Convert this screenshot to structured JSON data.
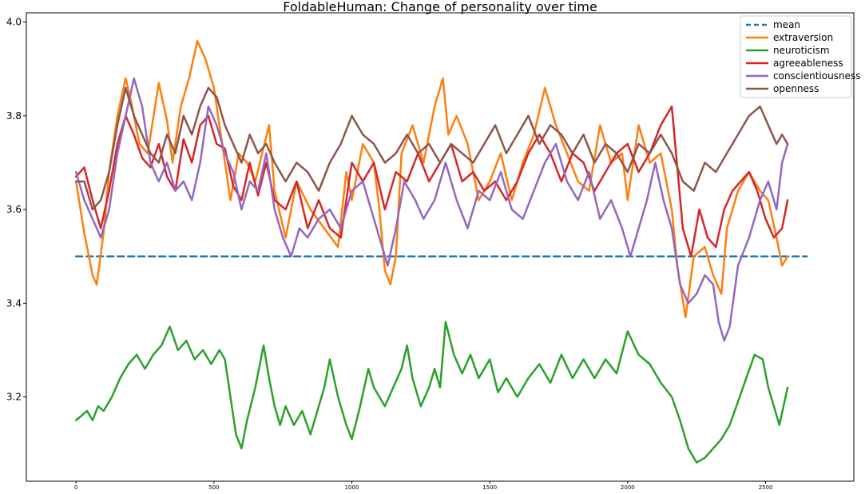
{
  "chart_data": {
    "type": "line",
    "title": "FoldableHuman: Change of personality over time",
    "xlabel": "",
    "ylabel": "",
    "xlim": [
      -180,
      2820
    ],
    "ylim": [
      3.02,
      4.02
    ],
    "xticks": [
      0,
      500,
      1000,
      1500,
      2000,
      2500
    ],
    "xtick_labels": [
      "0",
      "500",
      "1000",
      "1500",
      "2000",
      "2500"
    ],
    "yticks": [
      3.2,
      3.4,
      3.6,
      3.8,
      4.0
    ],
    "ytick_labels": [
      "3.2",
      "3.4",
      "3.6",
      "3.8",
      "4.0"
    ],
    "grid": false,
    "legend_position": "top-right",
    "series": [
      {
        "name": "mean",
        "color": "#1f77b4",
        "style": "dashed",
        "x": [
          0,
          2650
        ],
        "values": [
          3.5,
          3.5
        ]
      },
      {
        "name": "extraversion",
        "color": "#ff7f0e",
        "style": "solid",
        "x": [
          0,
          30,
          60,
          75,
          100,
          120,
          150,
          180,
          200,
          230,
          260,
          300,
          330,
          350,
          380,
          410,
          440,
          470,
          500,
          530,
          560,
          590,
          620,
          650,
          700,
          720,
          760,
          800,
          850,
          900,
          950,
          980,
          1000,
          1040,
          1080,
          1100,
          1120,
          1140,
          1160,
          1180,
          1220,
          1260,
          1300,
          1330,
          1350,
          1380,
          1420,
          1460,
          1500,
          1540,
          1580,
          1620,
          1660,
          1700,
          1740,
          1780,
          1820,
          1860,
          1900,
          1940,
          1980,
          2000,
          2040,
          2080,
          2120,
          2160,
          2180,
          2210,
          2240,
          2280,
          2310,
          2340,
          2360,
          2400,
          2440,
          2480,
          2510,
          2540,
          2560,
          2580
        ],
        "values": [
          3.66,
          3.55,
          3.46,
          3.44,
          3.55,
          3.68,
          3.8,
          3.88,
          3.83,
          3.74,
          3.72,
          3.87,
          3.79,
          3.7,
          3.82,
          3.88,
          3.96,
          3.92,
          3.86,
          3.74,
          3.62,
          3.72,
          3.7,
          3.66,
          3.78,
          3.64,
          3.54,
          3.66,
          3.6,
          3.56,
          3.52,
          3.68,
          3.62,
          3.74,
          3.7,
          3.6,
          3.47,
          3.44,
          3.5,
          3.72,
          3.78,
          3.7,
          3.82,
          3.88,
          3.76,
          3.8,
          3.74,
          3.62,
          3.66,
          3.72,
          3.62,
          3.7,
          3.76,
          3.86,
          3.78,
          3.72,
          3.66,
          3.64,
          3.78,
          3.7,
          3.72,
          3.62,
          3.78,
          3.7,
          3.72,
          3.6,
          3.48,
          3.37,
          3.5,
          3.52,
          3.46,
          3.42,
          3.56,
          3.64,
          3.68,
          3.64,
          3.62,
          3.54,
          3.48,
          3.5
        ]
      },
      {
        "name": "neuroticism",
        "color": "#2ca02c",
        "style": "solid",
        "x": [
          0,
          20,
          40,
          60,
          80,
          100,
          130,
          160,
          190,
          220,
          250,
          280,
          310,
          340,
          370,
          400,
          430,
          460,
          490,
          520,
          540,
          560,
          580,
          600,
          620,
          650,
          680,
          700,
          720,
          740,
          760,
          790,
          820,
          850,
          880,
          900,
          920,
          950,
          980,
          1000,
          1030,
          1060,
          1080,
          1100,
          1120,
          1150,
          1180,
          1200,
          1220,
          1250,
          1280,
          1300,
          1320,
          1340,
          1370,
          1400,
          1430,
          1460,
          1500,
          1530,
          1560,
          1600,
          1640,
          1680,
          1720,
          1760,
          1800,
          1840,
          1880,
          1920,
          1960,
          2000,
          2040,
          2080,
          2120,
          2160,
          2190,
          2220,
          2250,
          2280,
          2310,
          2340,
          2370,
          2400,
          2430,
          2460,
          2490,
          2510,
          2530,
          2550,
          2580
        ],
        "values": [
          3.15,
          3.16,
          3.17,
          3.15,
          3.18,
          3.17,
          3.2,
          3.24,
          3.27,
          3.29,
          3.26,
          3.29,
          3.31,
          3.35,
          3.3,
          3.32,
          3.28,
          3.3,
          3.27,
          3.3,
          3.28,
          3.2,
          3.12,
          3.09,
          3.15,
          3.22,
          3.31,
          3.24,
          3.18,
          3.14,
          3.18,
          3.14,
          3.17,
          3.12,
          3.18,
          3.22,
          3.28,
          3.2,
          3.14,
          3.11,
          3.18,
          3.26,
          3.22,
          3.2,
          3.18,
          3.22,
          3.26,
          3.31,
          3.24,
          3.18,
          3.22,
          3.26,
          3.22,
          3.36,
          3.29,
          3.25,
          3.29,
          3.24,
          3.28,
          3.21,
          3.24,
          3.2,
          3.24,
          3.27,
          3.23,
          3.29,
          3.24,
          3.28,
          3.24,
          3.28,
          3.25,
          3.34,
          3.29,
          3.27,
          3.23,
          3.2,
          3.15,
          3.09,
          3.06,
          3.07,
          3.09,
          3.11,
          3.14,
          3.19,
          3.24,
          3.29,
          3.28,
          3.22,
          3.18,
          3.14,
          3.22
        ]
      },
      {
        "name": "agreeableness",
        "color": "#d62728",
        "style": "solid",
        "x": [
          0,
          30,
          60,
          90,
          120,
          150,
          180,
          210,
          240,
          270,
          300,
          330,
          360,
          390,
          420,
          450,
          480,
          510,
          540,
          570,
          600,
          630,
          660,
          690,
          720,
          760,
          800,
          840,
          880,
          920,
          960,
          1000,
          1040,
          1080,
          1120,
          1160,
          1200,
          1240,
          1280,
          1320,
          1360,
          1400,
          1440,
          1480,
          1520,
          1560,
          1600,
          1640,
          1680,
          1720,
          1760,
          1800,
          1840,
          1880,
          1920,
          1960,
          2000,
          2040,
          2080,
          2120,
          2160,
          2200,
          2230,
          2260,
          2290,
          2320,
          2350,
          2380,
          2410,
          2440,
          2470,
          2500,
          2530,
          2560,
          2580
        ],
        "values": [
          3.67,
          3.69,
          3.62,
          3.56,
          3.64,
          3.74,
          3.8,
          3.76,
          3.71,
          3.69,
          3.74,
          3.67,
          3.64,
          3.75,
          3.7,
          3.78,
          3.8,
          3.74,
          3.73,
          3.65,
          3.62,
          3.7,
          3.63,
          3.7,
          3.62,
          3.6,
          3.66,
          3.56,
          3.62,
          3.56,
          3.54,
          3.7,
          3.66,
          3.7,
          3.6,
          3.68,
          3.66,
          3.72,
          3.66,
          3.7,
          3.74,
          3.66,
          3.68,
          3.64,
          3.66,
          3.62,
          3.66,
          3.72,
          3.76,
          3.72,
          3.66,
          3.72,
          3.7,
          3.64,
          3.68,
          3.72,
          3.74,
          3.68,
          3.72,
          3.78,
          3.82,
          3.56,
          3.5,
          3.6,
          3.54,
          3.52,
          3.6,
          3.64,
          3.66,
          3.68,
          3.64,
          3.58,
          3.54,
          3.56,
          3.62
        ]
      },
      {
        "name": "conscientiousness",
        "color": "#9467bd",
        "style": "solid",
        "x": [
          0,
          30,
          60,
          90,
          120,
          150,
          180,
          210,
          240,
          270,
          300,
          330,
          360,
          390,
          420,
          450,
          480,
          510,
          540,
          570,
          600,
          630,
          660,
          690,
          720,
          750,
          780,
          810,
          840,
          880,
          920,
          960,
          1000,
          1040,
          1080,
          1110,
          1130,
          1160,
          1190,
          1230,
          1260,
          1300,
          1340,
          1380,
          1420,
          1460,
          1500,
          1540,
          1580,
          1620,
          1660,
          1700,
          1740,
          1780,
          1820,
          1860,
          1900,
          1940,
          1980,
          2010,
          2040,
          2070,
          2100,
          2130,
          2160,
          2190,
          2220,
          2250,
          2280,
          2310,
          2330,
          2350,
          2370,
          2400,
          2440,
          2480,
          2510,
          2540,
          2560,
          2580
        ],
        "values": [
          3.68,
          3.62,
          3.58,
          3.54,
          3.6,
          3.72,
          3.8,
          3.88,
          3.82,
          3.7,
          3.66,
          3.7,
          3.64,
          3.66,
          3.62,
          3.7,
          3.82,
          3.78,
          3.72,
          3.68,
          3.6,
          3.66,
          3.64,
          3.72,
          3.6,
          3.54,
          3.5,
          3.56,
          3.54,
          3.58,
          3.6,
          3.56,
          3.64,
          3.66,
          3.58,
          3.52,
          3.48,
          3.56,
          3.66,
          3.62,
          3.58,
          3.62,
          3.7,
          3.62,
          3.56,
          3.64,
          3.62,
          3.68,
          3.6,
          3.58,
          3.64,
          3.7,
          3.74,
          3.66,
          3.62,
          3.68,
          3.58,
          3.62,
          3.56,
          3.5,
          3.56,
          3.62,
          3.7,
          3.62,
          3.56,
          3.44,
          3.4,
          3.42,
          3.46,
          3.44,
          3.36,
          3.32,
          3.35,
          3.48,
          3.54,
          3.62,
          3.66,
          3.6,
          3.7,
          3.74
        ]
      },
      {
        "name": "openness",
        "color": "#8c564b",
        "style": "solid",
        "x": [
          0,
          30,
          60,
          90,
          120,
          150,
          180,
          210,
          240,
          270,
          300,
          330,
          360,
          390,
          420,
          450,
          480,
          510,
          540,
          570,
          600,
          630,
          660,
          690,
          720,
          760,
          800,
          840,
          880,
          920,
          960,
          1000,
          1040,
          1080,
          1120,
          1160,
          1200,
          1240,
          1280,
          1320,
          1360,
          1400,
          1440,
          1480,
          1520,
          1560,
          1600,
          1640,
          1680,
          1720,
          1760,
          1800,
          1840,
          1880,
          1920,
          1960,
          2000,
          2040,
          2080,
          2120,
          2160,
          2200,
          2240,
          2280,
          2320,
          2360,
          2400,
          2440,
          2480,
          2510,
          2540,
          2560,
          2580
        ],
        "values": [
          3.66,
          3.66,
          3.6,
          3.62,
          3.68,
          3.78,
          3.86,
          3.8,
          3.76,
          3.72,
          3.7,
          3.76,
          3.72,
          3.8,
          3.76,
          3.82,
          3.86,
          3.84,
          3.78,
          3.74,
          3.7,
          3.76,
          3.72,
          3.74,
          3.7,
          3.66,
          3.7,
          3.68,
          3.64,
          3.7,
          3.74,
          3.8,
          3.76,
          3.74,
          3.7,
          3.72,
          3.76,
          3.72,
          3.74,
          3.7,
          3.74,
          3.72,
          3.7,
          3.74,
          3.78,
          3.72,
          3.76,
          3.8,
          3.74,
          3.78,
          3.76,
          3.72,
          3.76,
          3.7,
          3.74,
          3.72,
          3.68,
          3.74,
          3.72,
          3.76,
          3.72,
          3.66,
          3.64,
          3.7,
          3.68,
          3.72,
          3.76,
          3.8,
          3.82,
          3.78,
          3.74,
          3.76,
          3.74
        ]
      }
    ]
  }
}
